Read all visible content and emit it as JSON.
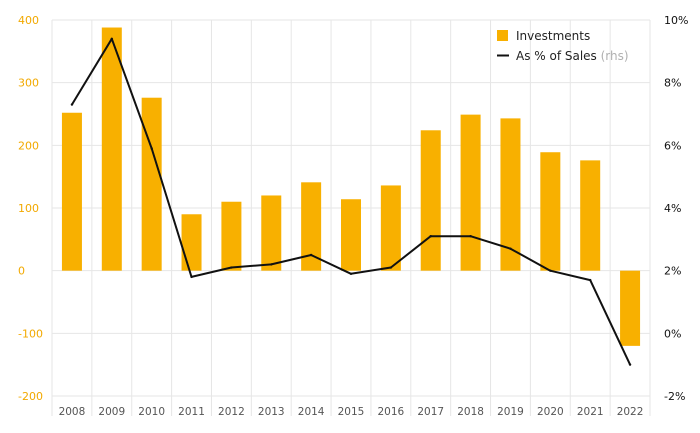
{
  "chart_data": {
    "type": "bar",
    "categories": [
      "2008",
      "2009",
      "2010",
      "2011",
      "2012",
      "2013",
      "2014",
      "2015",
      "2016",
      "2017",
      "2018",
      "2019",
      "2020",
      "2021",
      "2022"
    ],
    "series": [
      {
        "name": "Investments",
        "kind": "bar",
        "axis": "left",
        "values": [
          252,
          388,
          276,
          90,
          110,
          120,
          141,
          114,
          136,
          224,
          249,
          243,
          189,
          176,
          -120
        ]
      },
      {
        "name": "As % of Sales",
        "kind": "line",
        "axis": "right",
        "values": [
          7.3,
          9.4,
          5.9,
          1.8,
          2.1,
          2.2,
          2.5,
          1.9,
          2.1,
          3.1,
          3.1,
          2.7,
          2.0,
          1.7,
          -1.0
        ]
      }
    ],
    "ylim_left": [
      -200,
      400
    ],
    "ylim_right": [
      -2,
      10
    ],
    "left_ticks": [
      "400",
      "300",
      "200",
      "100",
      "0",
      "-100",
      "-200"
    ],
    "right_ticks": [
      "10%",
      "8%",
      "6%",
      "4%",
      "2%",
      "0%",
      "-2%"
    ],
    "legend": {
      "position": "top-right",
      "items": [
        {
          "label": "Investments",
          "suffix": ""
        },
        {
          "label": "As % of Sales",
          "suffix": " (rhs)"
        }
      ]
    },
    "colors": {
      "bar": "#f8b000",
      "line": "#111111",
      "left_axis_text": "#f2a900",
      "grid": "#e6e6e6"
    },
    "grid": true
  }
}
